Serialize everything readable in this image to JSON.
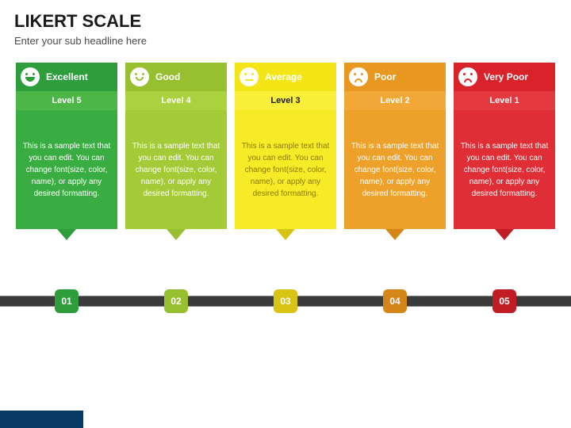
{
  "title": "LIKERT SCALE",
  "subtitle": "Enter your sub headline here",
  "body_text": "This is a sample text that you can edit. You can change font(size, color, name), or apply any desired formatting.",
  "timeline_bar_color": "#3a3a3a",
  "bottom_bar_color": "#0a3a66",
  "cards": [
    {
      "rating": "Excellent",
      "level": "Level 5",
      "marker": "01",
      "mood": "happy-big",
      "header_color": "#2d9e3b",
      "band_color": "#4cb648",
      "body_color": "#3aad42",
      "pointer_color": "#2d9e3b",
      "body_text_color": "#ffffff",
      "level_text_color": "#ffffff"
    },
    {
      "rating": "Good",
      "level": "Level 4",
      "marker": "02",
      "mood": "happy",
      "header_color": "#97bf2f",
      "band_color": "#abd13e",
      "body_color": "#a4cb37",
      "pointer_color": "#97bf2f",
      "body_text_color": "#ffffff",
      "level_text_color": "#ffffff"
    },
    {
      "rating": "Average",
      "level": "Level 3",
      "marker": "03",
      "mood": "neutral",
      "header_color": "#f4e616",
      "band_color": "#f9ee3a",
      "body_color": "#f7eb28",
      "pointer_color": "#d7c414",
      "body_text_color": "#8a7a00",
      "level_text_color": "#1a1a1a"
    },
    {
      "rating": "Poor",
      "level": "Level 2",
      "marker": "04",
      "mood": "sad",
      "header_color": "#e89820",
      "band_color": "#f1a836",
      "body_color": "#eea12a",
      "pointer_color": "#d48618",
      "body_text_color": "#ffffff",
      "level_text_color": "#ffffff"
    },
    {
      "rating": "Very Poor",
      "level": "Level 1",
      "marker": "05",
      "mood": "sad",
      "header_color": "#d8232a",
      "band_color": "#e53940",
      "body_color": "#df2e35",
      "pointer_color": "#c01e24",
      "body_text_color": "#ffffff",
      "level_text_color": "#ffffff"
    }
  ]
}
